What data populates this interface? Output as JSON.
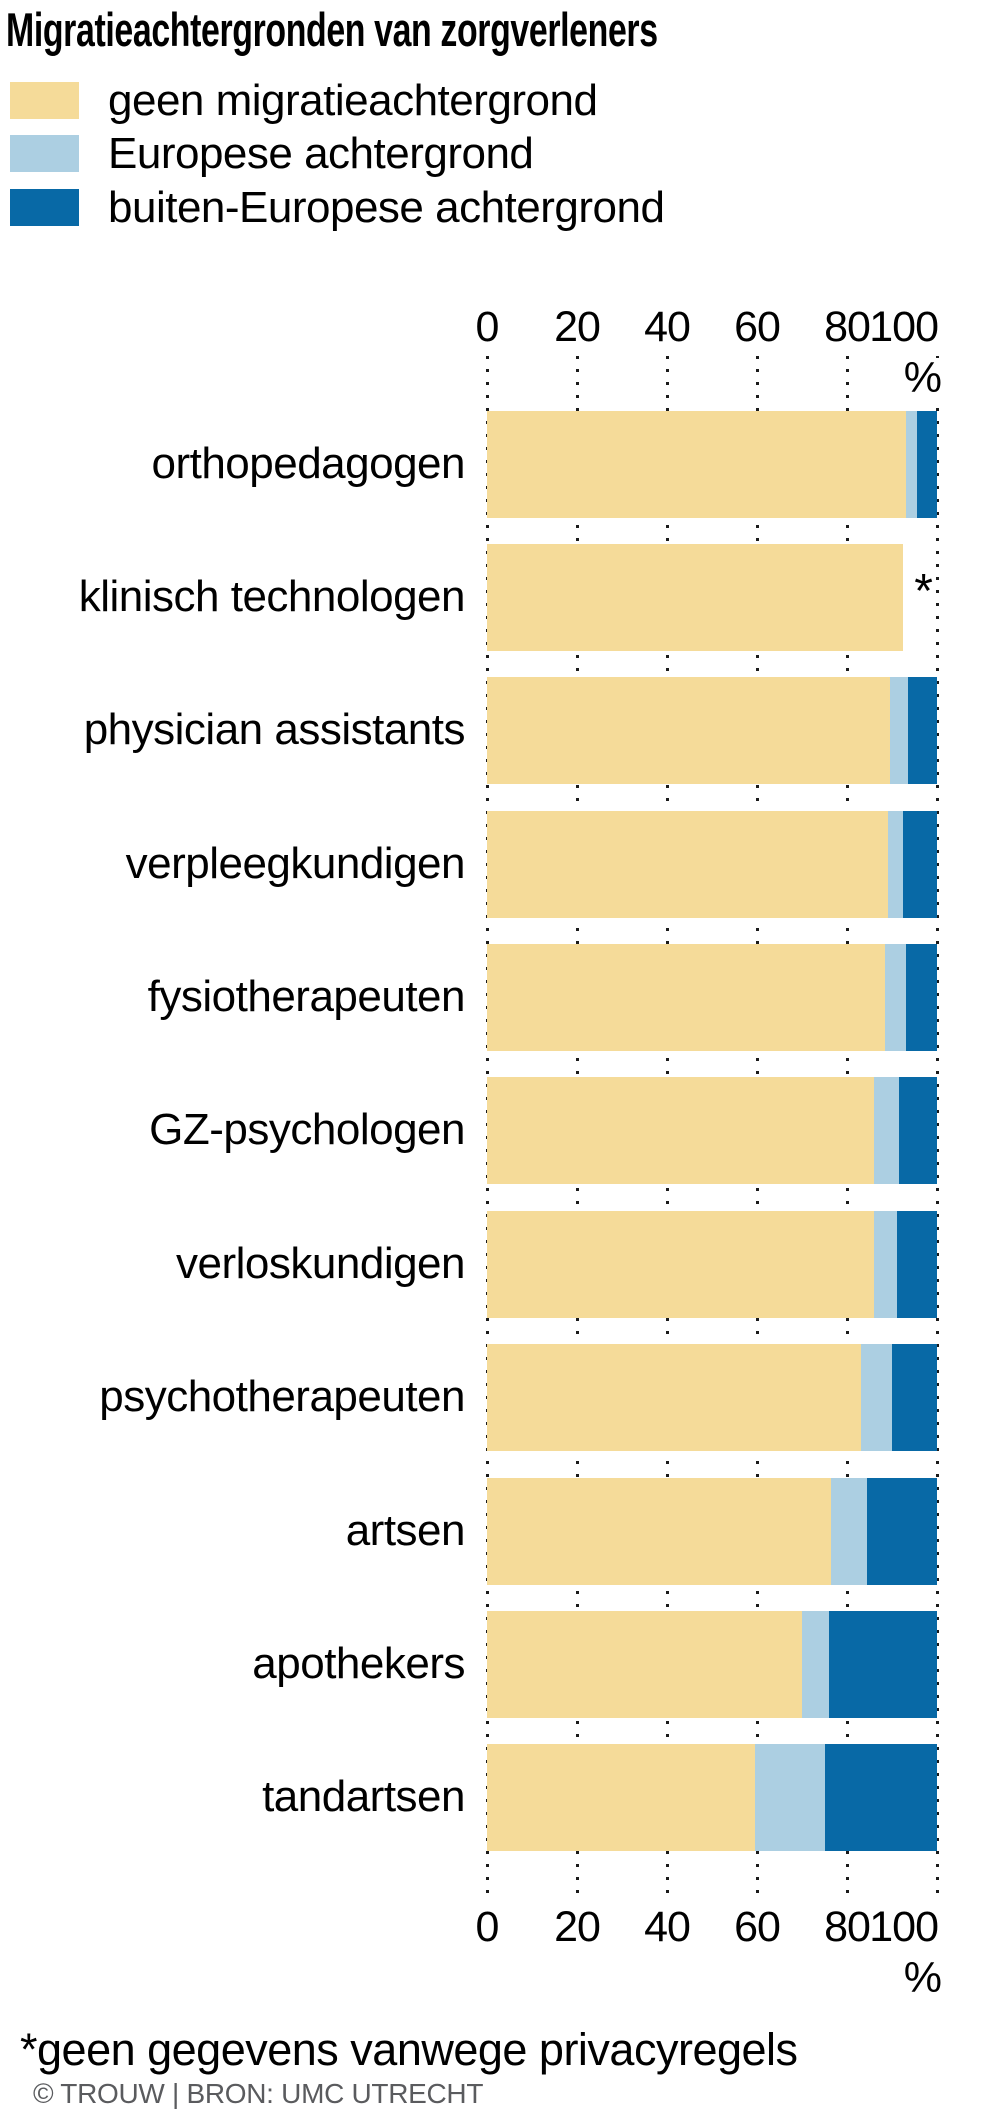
{
  "title": "Migratieachtergronden van zorgverleners",
  "legend": {
    "items": [
      {
        "label": "geen migratieachtergrond",
        "color_key": "geen"
      },
      {
        "label": "Europese achtergrond",
        "color_key": "europees"
      },
      {
        "label": "buiten-Europese achtergrond",
        "color_key": "buiten_europees"
      }
    ]
  },
  "colors": {
    "geen": "#F5DB99",
    "europees": "#ACCFE2",
    "buiten_europees": "#0869A6",
    "gridline": "#1b1b1b",
    "credit_text": "#5A5B5E"
  },
  "axis": {
    "ticks": [
      0,
      20,
      40,
      60,
      80,
      100
    ],
    "unit_label": "%"
  },
  "note_marker": "*",
  "footnote": "*geen gegevens vanwege privacyregels",
  "credit": "© TROUW | BRON: UMC UTRECHT",
  "chart_data": {
    "type": "bar",
    "orientation": "horizontal",
    "stacked": true,
    "xlim": [
      0,
      100
    ],
    "x_ticks": [
      0,
      20,
      40,
      60,
      80,
      100
    ],
    "unit": "%",
    "grid": "dotted-vertical",
    "legend_position": "top-left",
    "series_names": [
      "geen migratieachtergrond",
      "Europese achtergrond",
      "buiten-Europese achtergrond"
    ],
    "categories": [
      "orthopedagogen",
      "klinisch technologen",
      "physician assistants",
      "verpleegkundigen",
      "fysiotherapeuten",
      "GZ-psychologen",
      "verloskundigen",
      "psychotherapeuten",
      "artsen",
      "apothekers",
      "tandartsen"
    ],
    "rows": [
      {
        "label": "orthopedagogen",
        "values": [
          93,
          2.5,
          4.5
        ],
        "note": null
      },
      {
        "label": "klinisch technologen",
        "values": [
          92.5,
          null,
          null
        ],
        "note": "*"
      },
      {
        "label": "physician assistants",
        "values": [
          89.5,
          4,
          6.5
        ],
        "note": null
      },
      {
        "label": "verpleegkundigen",
        "values": [
          89,
          3.5,
          7.5
        ],
        "note": null
      },
      {
        "label": "fysiotherapeuten",
        "values": [
          88.5,
          4.5,
          7
        ],
        "note": null
      },
      {
        "label": "GZ-psychologen",
        "values": [
          86,
          5.5,
          8.5
        ],
        "note": null
      },
      {
        "label": "verloskundigen",
        "values": [
          86,
          5,
          9
        ],
        "note": null
      },
      {
        "label": "psychotherapeuten",
        "values": [
          83,
          7,
          10
        ],
        "note": null
      },
      {
        "label": "artsen",
        "values": [
          76.5,
          8,
          15.5
        ],
        "note": null
      },
      {
        "label": "apothekers",
        "values": [
          70,
          6,
          24
        ],
        "note": null
      },
      {
        "label": "tandartsen",
        "values": [
          59.5,
          15.5,
          25
        ],
        "note": null
      }
    ]
  }
}
